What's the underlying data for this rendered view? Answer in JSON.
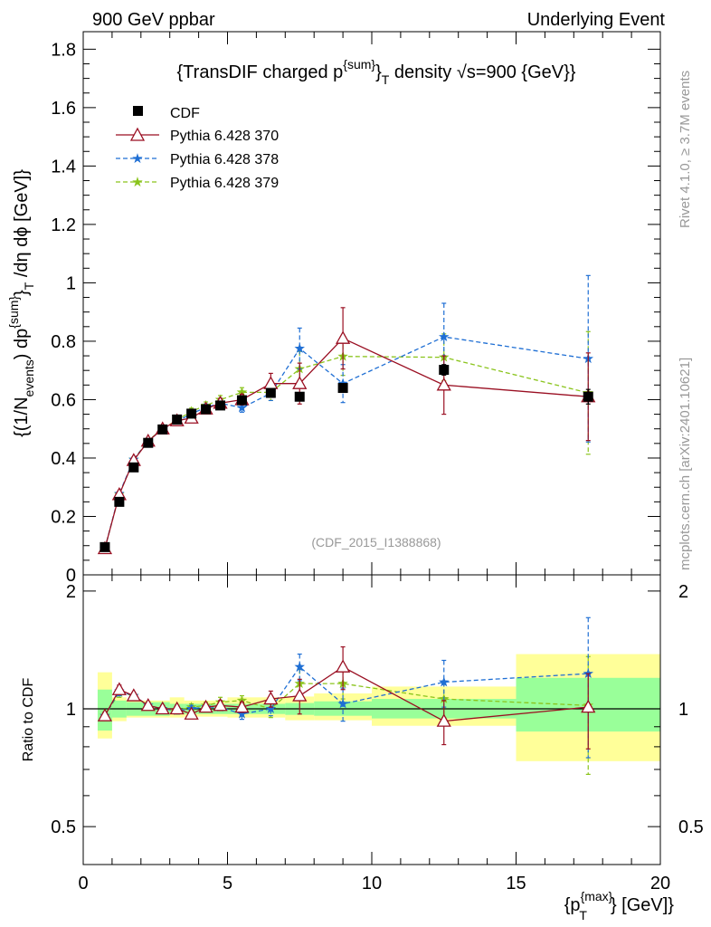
{
  "header": {
    "left": "900 GeV ppbar",
    "right": "Underlying Event"
  },
  "side_labels": {
    "rivet": "Rivet 4.1.0, ≥ 3.7M events",
    "mcplots": "mcplots.cern.ch [arXiv:2401.10621]"
  },
  "chart_data": [
    {
      "type": "line",
      "panel": "main",
      "title_parts": {
        "a": "{TransDIF charged p",
        "sup": "{sum}",
        "b": "}",
        "sub": "T",
        "c": " density √s=900 {GeV}}"
      },
      "ylabel_parts": {
        "a": "{(1/N",
        "sub1": "events",
        "b": ") dp",
        "sup": "{sum}",
        "c": "}",
        "sub2": "T",
        "d": " /dη  dϕ [GeV]}"
      },
      "watermark": "(CDF_2015_I1388868)",
      "xlim": [
        0,
        20
      ],
      "ylim": [
        0,
        1.86
      ],
      "yticks": [
        "0",
        "0.2",
        "0.4",
        "0.6",
        "0.8",
        "1",
        "1.2",
        "1.4",
        "1.6",
        "1.8"
      ],
      "legend": [
        "CDF",
        "Pythia 6.428 370",
        "Pythia 6.428 378",
        "Pythia 6.428 379"
      ],
      "legend_position": "top-left",
      "series": [
        {
          "name": "CDF",
          "color": "#000000",
          "marker": "square",
          "x": [
            0.75,
            1.25,
            1.75,
            2.25,
            2.75,
            3.25,
            3.75,
            4.25,
            4.75,
            5.5,
            6.5,
            7.5,
            9.0,
            12.5,
            17.5
          ],
          "y": [
            0.095,
            0.25,
            0.368,
            0.452,
            0.498,
            0.532,
            0.552,
            0.567,
            0.58,
            0.598,
            0.623,
            0.61,
            0.64,
            0.702,
            0.61
          ],
          "err": [
            0.005,
            0.005,
            0.006,
            0.006,
            0.007,
            0.007,
            0.007,
            0.008,
            0.008,
            0.008,
            0.009,
            0.011,
            0.013,
            0.018,
            0.025
          ]
        },
        {
          "name": "Pythia 6.428 370",
          "color": "#9a0f22",
          "marker": "triangle-open",
          "dash": "",
          "x": [
            0.75,
            1.25,
            1.75,
            2.25,
            2.75,
            3.25,
            3.75,
            4.25,
            4.75,
            5.5,
            6.5,
            7.5,
            9.0,
            12.5,
            17.5
          ],
          "y": [
            0.09,
            0.275,
            0.392,
            0.458,
            0.5,
            0.528,
            0.537,
            0.568,
            0.588,
            0.6,
            0.655,
            0.655,
            0.81,
            0.65,
            0.61
          ],
          "err": [
            0.005,
            0.008,
            0.008,
            0.008,
            0.009,
            0.01,
            0.012,
            0.014,
            0.016,
            0.018,
            0.035,
            0.07,
            0.105,
            0.1,
            0.15
          ]
        },
        {
          "name": "Pythia 6.428 378",
          "color": "#1f6fd4",
          "marker": "star",
          "dash": "5,3",
          "x": [
            0.75,
            1.25,
            1.75,
            2.25,
            2.75,
            3.25,
            3.75,
            4.25,
            4.75,
            5.5,
            6.5,
            7.5,
            9.0,
            12.5,
            17.5
          ],
          "y": [
            0.09,
            0.278,
            0.395,
            0.458,
            0.5,
            0.525,
            0.552,
            0.573,
            0.588,
            0.572,
            0.622,
            0.775,
            0.655,
            0.815,
            0.74
          ],
          "err": [
            0.005,
            0.008,
            0.008,
            0.008,
            0.009,
            0.01,
            0.011,
            0.012,
            0.014,
            0.015,
            0.025,
            0.07,
            0.065,
            0.115,
            0.285
          ]
        },
        {
          "name": "Pythia 6.428 379",
          "color": "#8ac41c",
          "marker": "star",
          "dash": "5,3",
          "x": [
            0.75,
            1.25,
            1.75,
            2.25,
            2.75,
            3.25,
            3.75,
            4.25,
            4.75,
            5.5,
            6.5,
            7.5,
            9.0,
            12.5,
            17.5
          ],
          "y": [
            0.09,
            0.275,
            0.395,
            0.46,
            0.5,
            0.53,
            0.56,
            0.58,
            0.6,
            0.625,
            0.625,
            0.705,
            0.748,
            0.745,
            0.623
          ],
          "err": [
            0.005,
            0.008,
            0.008,
            0.008,
            0.009,
            0.01,
            0.011,
            0.012,
            0.014,
            0.016,
            0.028,
            0.06,
            0.065,
            0.08,
            0.21
          ]
        }
      ]
    },
    {
      "type": "line",
      "panel": "ratio",
      "ylabel": "Ratio to CDF",
      "xlabel_parts": {
        "a": "{p",
        "sup": "{max}",
        "sub": "T",
        "b": "} [GeV]}"
      },
      "xlim": [
        0,
        20
      ],
      "ylim": [
        0.4,
        2.2
      ],
      "yscale": "log",
      "xticks": [
        "0",
        "5",
        "10",
        "15",
        "20"
      ],
      "yticks": [
        "0.5",
        "1",
        "2"
      ],
      "bands": [
        {
          "xlo": 0.5,
          "xhi": 1.0,
          "green": [
            0.88,
            1.12
          ],
          "yellow": [
            0.84,
            1.24
          ]
        },
        {
          "xlo": 1.0,
          "xhi": 1.5,
          "green": [
            0.95,
            1.05
          ],
          "yellow": [
            0.93,
            1.07
          ]
        },
        {
          "xlo": 1.5,
          "xhi": 3.0,
          "green": [
            0.96,
            1.04
          ],
          "yellow": [
            0.95,
            1.05
          ]
        },
        {
          "xlo": 3.0,
          "xhi": 3.5,
          "green": [
            0.97,
            1.03
          ],
          "yellow": [
            0.95,
            1.07
          ]
        },
        {
          "xlo": 3.5,
          "xhi": 5.0,
          "green": [
            0.97,
            1.03
          ],
          "yellow": [
            0.955,
            1.05
          ]
        },
        {
          "xlo": 5.0,
          "xhi": 7.0,
          "green": [
            0.97,
            1.03
          ],
          "yellow": [
            0.95,
            1.07
          ]
        },
        {
          "xlo": 7.0,
          "xhi": 8.0,
          "green": [
            0.965,
            1.035
          ],
          "yellow": [
            0.935,
            1.075
          ]
        },
        {
          "xlo": 8.0,
          "xhi": 10.0,
          "green": [
            0.96,
            1.045
          ],
          "yellow": [
            0.935,
            1.095
          ]
        },
        {
          "xlo": 10.0,
          "xhi": 15.0,
          "green": [
            0.945,
            1.06
          ],
          "yellow": [
            0.905,
            1.14
          ]
        },
        {
          "xlo": 15.0,
          "xhi": 20.0,
          "green": [
            0.875,
            1.2
          ],
          "yellow": [
            0.735,
            1.38
          ]
        }
      ],
      "series": [
        {
          "name": "Pythia 6.428 370",
          "color": "#9a0f22",
          "marker": "triangle-open",
          "dash": "",
          "x": [
            0.75,
            1.25,
            1.75,
            2.25,
            2.75,
            3.25,
            3.75,
            4.25,
            4.75,
            5.5,
            6.5,
            7.5,
            9.0,
            12.5,
            17.5
          ],
          "y": [
            0.96,
            1.12,
            1.08,
            1.02,
            1.0,
            1.0,
            0.97,
            1.01,
            1.02,
            1.01,
            1.06,
            1.08,
            1.28,
            0.93,
            1.01
          ],
          "err": [
            0.02,
            0.03,
            0.02,
            0.02,
            0.02,
            0.02,
            0.02,
            0.02,
            0.03,
            0.03,
            0.05,
            0.11,
            0.16,
            0.12,
            0.22
          ]
        },
        {
          "name": "Pythia 6.428 378",
          "color": "#1f6fd4",
          "marker": "star",
          "dash": "5,3",
          "x": [
            0.75,
            1.25,
            1.75,
            2.25,
            2.75,
            3.25,
            3.75,
            4.25,
            4.75,
            5.5,
            6.5,
            7.5,
            9.0,
            12.5,
            17.5
          ],
          "y": [
            0.96,
            1.11,
            1.08,
            1.02,
            1.0,
            0.99,
            1.0,
            1.01,
            1.01,
            0.97,
            1.0,
            1.28,
            1.03,
            1.17,
            1.23
          ],
          "err": [
            0.02,
            0.03,
            0.02,
            0.02,
            0.02,
            0.02,
            0.02,
            0.02,
            0.02,
            0.03,
            0.04,
            0.1,
            0.1,
            0.16,
            0.48
          ]
        },
        {
          "name": "Pythia 6.428 379",
          "color": "#8ac41c",
          "marker": "star",
          "dash": "5,3",
          "x": [
            0.75,
            1.25,
            1.75,
            2.25,
            2.75,
            3.25,
            3.75,
            4.25,
            4.75,
            5.5,
            6.5,
            7.5,
            9.0,
            12.5,
            17.5
          ],
          "y": [
            0.96,
            1.1,
            1.08,
            1.02,
            1.0,
            0.99,
            1.01,
            1.02,
            1.04,
            1.05,
            1.0,
            1.16,
            1.16,
            1.06,
            1.02
          ],
          "err": [
            0.02,
            0.03,
            0.02,
            0.02,
            0.02,
            0.02,
            0.02,
            0.02,
            0.03,
            0.03,
            0.05,
            0.1,
            0.1,
            0.11,
            0.34
          ]
        }
      ]
    }
  ]
}
